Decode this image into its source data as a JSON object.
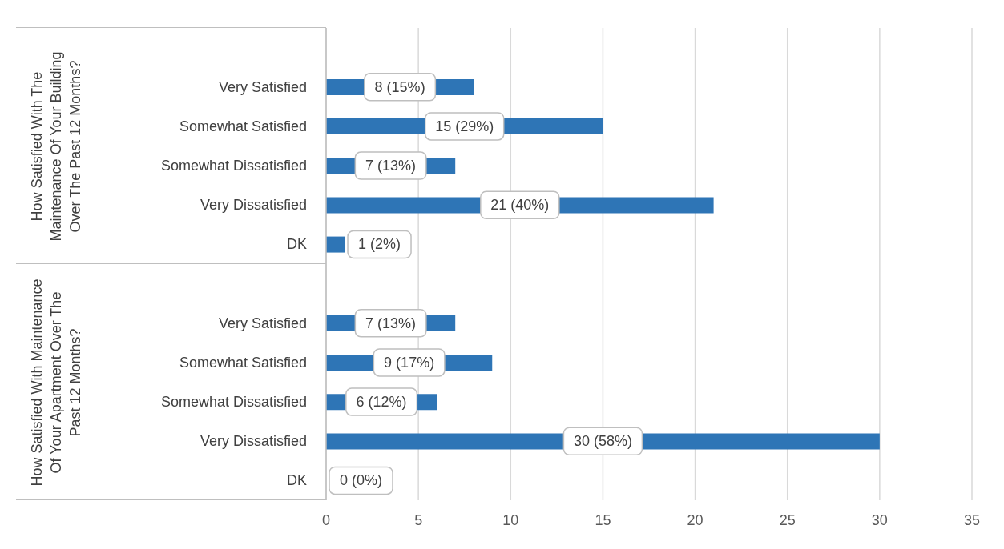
{
  "chart_data": {
    "type": "bar",
    "orientation": "horizontal",
    "categories": [
      null,
      "Very Satisfied",
      "Somewhat Satisfied",
      "Somewhat Dissatisfied",
      "Very Dissatisfied",
      "DK",
      null,
      "Very Satisfied",
      "Somewhat Satisfied",
      "Somewhat Dissatisfied",
      "Very Dissatisfied",
      "DK"
    ],
    "values": [
      null,
      8,
      15,
      7,
      21,
      1,
      null,
      7,
      9,
      6,
      30,
      0
    ],
    "value_labels": [
      null,
      "8 (15%)",
      "15 (29%)",
      "7 (13%)",
      "21 (40%)",
      "1 (2%)",
      null,
      "7 (13%)",
      "9 (17%)",
      "6 (12%)",
      "30 (58%)",
      "0 (0%)"
    ],
    "color": "#2e75b6",
    "xlim": [
      0,
      35
    ],
    "xticks": [
      0,
      5,
      10,
      15,
      20,
      25,
      30,
      35
    ],
    "grid": "x",
    "annotations": [
      "How Satisfied With The Maintenance Of Your Building Over The Past 12 Months?",
      "How Satisfied With Maintenance Of Your Apartment Over The Past 12 Months?"
    ]
  }
}
